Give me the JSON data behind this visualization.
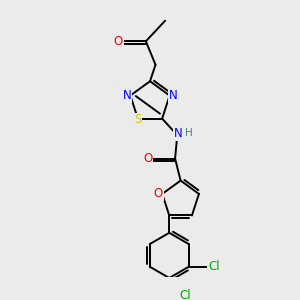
{
  "background_color": "#ebebeb",
  "atom_colors": {
    "C": "#000000",
    "H": "#4a8080",
    "N": "#0000ff",
    "O": "#ff0000",
    "S": "#cccc00",
    "Cl": "#00aa00"
  },
  "bond_color": "#000000",
  "bond_width": 1.4,
  "font_size": 8.5,
  "fig_width": 3.0,
  "fig_height": 3.0,
  "dpi": 100,
  "xlim": [
    0,
    10
  ],
  "ylim": [
    0,
    10
  ]
}
